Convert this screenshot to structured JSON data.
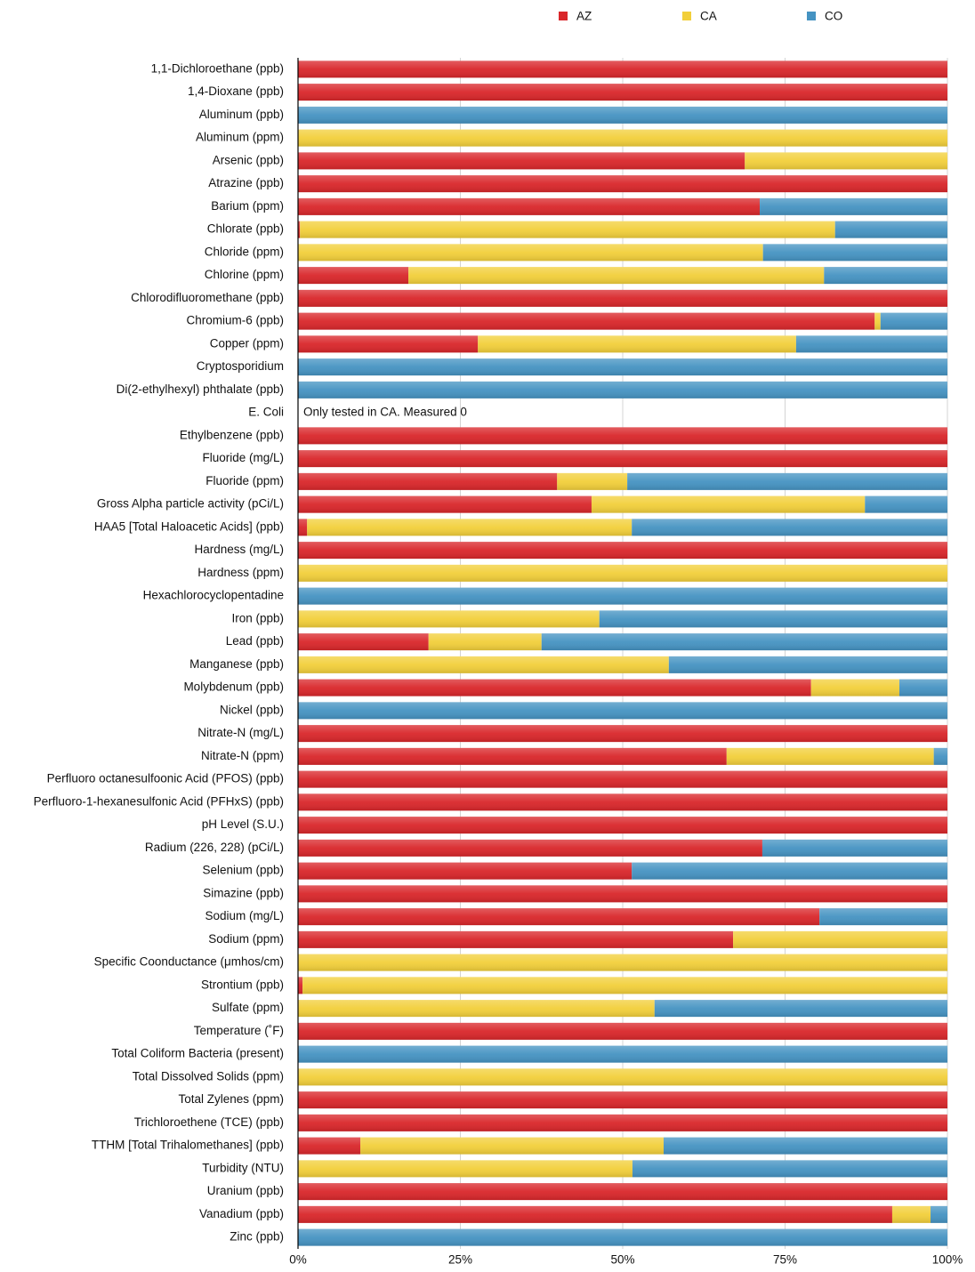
{
  "chart_data": {
    "type": "stacked-barh-percent",
    "categories": [
      "1,1-Dichloroethane (ppb)",
      "1,4-Dioxane (ppb)",
      "Aluminum (ppb)",
      "Aluminum (ppm)",
      "Arsenic (ppb)",
      "Atrazine (ppb)",
      "Barium (ppm)",
      "Chlorate (ppb)",
      "Chloride (ppm)",
      "Chlorine (ppm)",
      "Chlorodifluoromethane (ppb)",
      "Chromium-6 (ppb)",
      "Copper (ppm)",
      "Cryptosporidium",
      "Di(2-ethylhexyl) phthalate (ppb)",
      "E. Coli",
      "Ethylbenzene (ppb)",
      "Fluoride (mg/L)",
      "Fluoride (ppm)",
      "Gross Alpha particle activity (pCi/L)",
      "HAA5 [Total Haloacetic Acids] (ppb)",
      "Hardness (mg/L)",
      "Hardness (ppm)",
      "Hexachlorocyclopentadine",
      "Iron (ppb)",
      "Lead (ppb)",
      "Manganese (ppb)",
      "Molybdenum (ppb)",
      "Nickel (ppb)",
      "Nitrate-N (mg/L)",
      "Nitrate-N (ppm)",
      "Perfluoro octanesulfoonic Acid (PFOS) (ppb)",
      "Perfluoro-1-hexanesulfonic Acid (PFHxS) (ppb)",
      "pH Level (S.U.)",
      "Radium (226, 228) (pCi/L)",
      "Selenium (ppb)",
      "Simazine (ppb)",
      "Sodium (mg/L)",
      "Sodium (ppm)",
      "Specific Coonductance (μmhos/cm)",
      "Strontium (ppb)",
      "Sulfate (ppm)",
      "Temperature (˚F)",
      "Total Coliform Bacteria (present)",
      "Total Dissolved Solids (ppm)",
      "Total Zylenes (ppm)",
      "Trichloroethene (TCE) (ppb)",
      "TTHM [Total Trihalomethanes] (ppb)",
      "Turbidity (NTU)",
      "Uranium (ppb)",
      "Vanadium (ppb)",
      "Zinc (ppb)"
    ],
    "series": [
      {
        "name": "AZ",
        "color": "#d9262a",
        "values": [
          100,
          100,
          0,
          0,
          68.8,
          100,
          71.1,
          0.3,
          0,
          17,
          100,
          88.8,
          27.7,
          0,
          0,
          0,
          100,
          100,
          39.9,
          45.2,
          1.4,
          100,
          0,
          0,
          0,
          20.1,
          0,
          79,
          0,
          100,
          66,
          100,
          100,
          100,
          71.5,
          51.4,
          100,
          80.3,
          67,
          0,
          0.7,
          0,
          100,
          0,
          0,
          100,
          100,
          9.6,
          0,
          100,
          91.5,
          0
        ]
      },
      {
        "name": "CA",
        "color": "#f2cf3a",
        "values": [
          0,
          0,
          0,
          100,
          31.2,
          0,
          0,
          82.4,
          71.6,
          64,
          0,
          0.9,
          49,
          0,
          0,
          0,
          0,
          0,
          10.8,
          42.1,
          50,
          0,
          100,
          0,
          46.4,
          17.4,
          57.1,
          13.6,
          0,
          0,
          31.9,
          0,
          0,
          0,
          0,
          0,
          0,
          0,
          33,
          100,
          99.3,
          54.9,
          0,
          0,
          100,
          0,
          0,
          46.7,
          51.5,
          0,
          5.9,
          0
        ]
      },
      {
        "name": "CO",
        "color": "#4593c2",
        "values": [
          0,
          0,
          100,
          0,
          0,
          0,
          28.9,
          17.3,
          28.4,
          19,
          0,
          10.3,
          23.3,
          100,
          100,
          0,
          0,
          0,
          49.3,
          12.7,
          48.6,
          0,
          0,
          100,
          53.6,
          62.5,
          42.9,
          7.4,
          100,
          0,
          2.1,
          0,
          0,
          0,
          28.5,
          48.6,
          0,
          19.7,
          0,
          0,
          0,
          45.1,
          0,
          100,
          0,
          0,
          0,
          43.7,
          48.5,
          0,
          2.6,
          100
        ]
      }
    ],
    "xlim": [
      0,
      100
    ],
    "xticks": [
      {
        "value": 0,
        "label": "0%"
      },
      {
        "value": 25,
        "label": "25%"
      },
      {
        "value": 50,
        "label": "50%"
      },
      {
        "value": 75,
        "label": "75%"
      },
      {
        "value": 100,
        "label": "100%"
      }
    ],
    "grid": true,
    "legend": "top",
    "annotations": [
      {
        "category": "E. Coli",
        "text": "Only tested in CA. Measured 0"
      }
    ]
  }
}
